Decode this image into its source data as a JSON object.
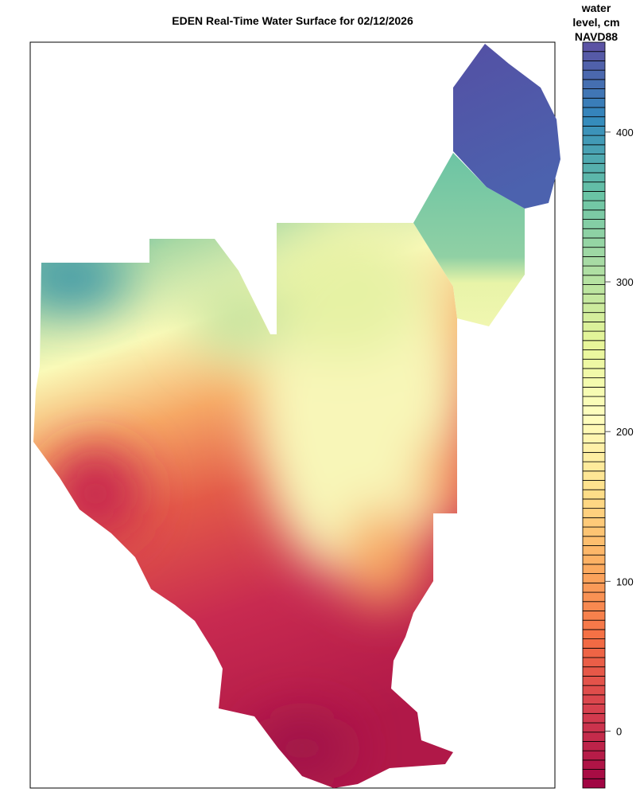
{
  "title": "EDEN Real-Time Water Surface for 02/12/2026",
  "legend": {
    "title_lines": [
      "water",
      "level, cm",
      "NAVD88"
    ],
    "ticks": [
      0,
      100,
      200,
      300,
      400
    ],
    "range": [
      -38,
      460
    ],
    "band_count": 80,
    "color_stops": [
      "#9e0142",
      "#d53e4f",
      "#f46d43",
      "#fdae61",
      "#fee08b",
      "#ffffbf",
      "#e6f598",
      "#abdda4",
      "#66c2a5",
      "#3288bd",
      "#5e4fa2"
    ]
  },
  "map": {
    "type": "interpolated water surface",
    "colors": {
      "north_teal": "#5ab4a8",
      "light_green": "#c5e3a0",
      "yellow": "#fafab8",
      "orange": "#f08a55",
      "red": "#d03a50",
      "crimson": "#b01848",
      "dark_blue": "#5058a8"
    }
  }
}
